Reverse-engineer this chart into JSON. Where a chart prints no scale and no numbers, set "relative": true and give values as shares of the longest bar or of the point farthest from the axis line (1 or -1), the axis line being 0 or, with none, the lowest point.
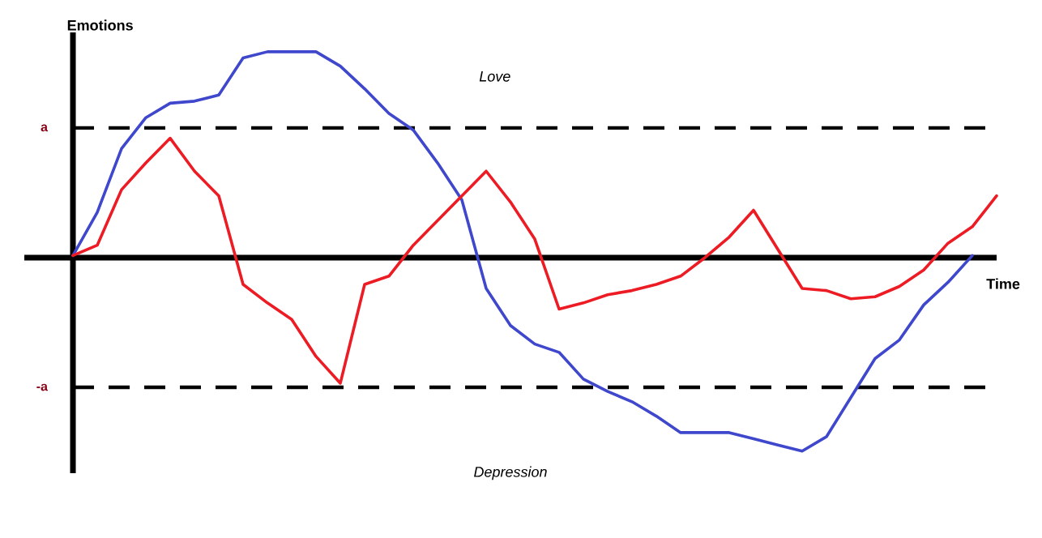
{
  "chart_data": {
    "type": "line",
    "xlabel": "Time",
    "ylabel": "Emotions",
    "annotations": [
      "Love",
      "Depression"
    ],
    "relative": true,
    "categories": [
      null,
      null,
      null,
      null,
      null,
      null,
      null,
      null,
      null,
      null,
      null,
      null,
      null,
      null,
      null,
      null,
      null,
      null,
      null,
      null,
      null,
      null,
      null,
      null,
      null,
      null,
      null,
      null,
      null,
      null,
      null,
      null,
      null,
      null,
      null,
      null,
      null,
      null,
      null
    ],
    "series": [
      {
        "color": "#3f48cc",
        "values": [
          0.01,
          0.22,
          0.53,
          0.68,
          0.75,
          0.76,
          0.79,
          0.97,
          1,
          1,
          1,
          0.93,
          0.82,
          0.7,
          0.62,
          0.46,
          0.28,
          -0.15,
          -0.33,
          -0.42,
          -0.46,
          -0.59,
          -0.65,
          -0.7,
          -0.77,
          -0.85,
          -0.85,
          -0.85,
          -0.88,
          -0.91,
          -0.94,
          -0.87,
          -0.68,
          -0.49,
          -0.4,
          -0.23,
          -0.12,
          0.01,
          null
        ]
      },
      {
        "color": "#ed1c24",
        "values": [
          0.01,
          0.06,
          0.33,
          0.46,
          0.58,
          0.42,
          0.3,
          -0.13,
          -0.22,
          -0.3,
          -0.48,
          -0.61,
          -0.13,
          -0.09,
          0.06,
          0.18,
          0.3,
          0.42,
          0.27,
          0.09,
          -0.25,
          -0.22,
          -0.18,
          -0.16,
          -0.13,
          -0.09,
          0,
          0.1,
          0.23,
          0.04,
          -0.15,
          -0.16,
          -0.2,
          -0.19,
          -0.14,
          -0.06,
          0.07,
          0.15,
          0.3
        ]
      }
    ],
    "ref_lines": [
      {
        "axis": "y",
        "value": 0.63,
        "label": "a",
        "color": "#000000",
        "line_style": "dashed"
      },
      {
        "axis": "y",
        "value": -0.63,
        "label": "-a",
        "color": "#000000",
        "line_style": "dashed"
      }
    ],
    "marker": "none",
    "line_style": "solid"
  }
}
